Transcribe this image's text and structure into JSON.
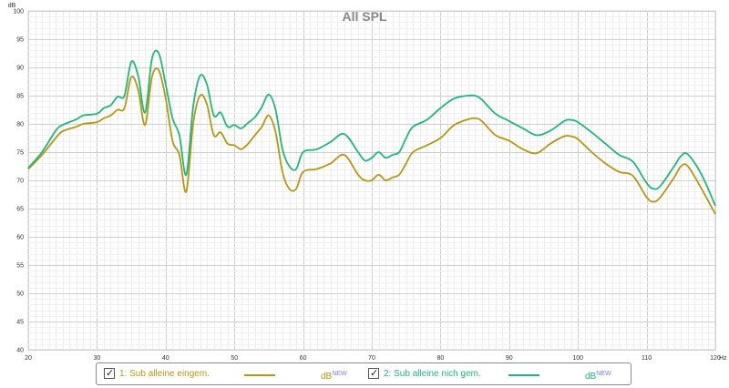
{
  "chart_data": {
    "type": "line",
    "title": "All SPL",
    "ylabel": "dB",
    "xunit": "Hz",
    "xlim": [
      20,
      120
    ],
    "ylim": [
      40,
      100
    ],
    "grid": true,
    "legend_position": "bottom",
    "xticks": [
      "20",
      "30",
      "40",
      "50",
      "60",
      "70",
      "80",
      "90",
      "100",
      "110",
      "120"
    ],
    "yticks": [
      "40",
      "45",
      "50",
      "55",
      "60",
      "65",
      "70",
      "75",
      "80",
      "85",
      "90",
      "95",
      "100"
    ],
    "series": [
      {
        "name": "1: Sub alleine eingem.",
        "unit": "dB",
        "unit_sup": "NEW",
        "color": "#b8960f",
        "checked": true,
        "x": [
          20,
          22,
          24,
          25,
          27,
          28,
          30,
          31,
          32,
          33,
          34,
          35,
          36,
          37,
          38,
          39,
          40,
          41,
          42,
          43,
          44,
          45,
          46,
          47,
          48,
          49,
          50,
          51,
          52,
          53,
          54,
          55,
          56,
          57,
          58,
          59,
          60,
          62,
          64,
          66,
          68,
          69,
          70,
          71,
          72,
          73,
          74,
          75,
          76,
          78,
          80,
          82,
          84,
          85,
          86,
          88,
          90,
          92,
          94,
          96,
          98,
          99,
          100,
          102,
          104,
          106,
          108,
          110,
          111,
          112,
          114,
          115,
          116,
          118,
          120
        ],
        "y": [
          72.0,
          74.5,
          77.5,
          78.7,
          79.5,
          80.0,
          80.3,
          81.0,
          81.5,
          82.5,
          82.8,
          88.3,
          86.0,
          79.8,
          88.3,
          89.5,
          84.5,
          77.0,
          74.5,
          68.0,
          80.0,
          85.0,
          83.5,
          78.0,
          78.5,
          76.5,
          76.2,
          75.5,
          76.5,
          78.0,
          79.5,
          81.5,
          78.5,
          71.5,
          68.5,
          68.5,
          71.5,
          72.0,
          73.0,
          74.5,
          71.0,
          70.0,
          70.0,
          71.0,
          70.0,
          70.5,
          71.0,
          73.0,
          75.0,
          76.2,
          77.5,
          79.8,
          80.8,
          81.0,
          80.5,
          78.0,
          77.0,
          75.5,
          74.8,
          76.5,
          77.8,
          77.8,
          77.3,
          75.0,
          73.0,
          71.5,
          70.8,
          67.0,
          66.2,
          67.0,
          70.5,
          72.5,
          72.5,
          68.5,
          64.0
        ]
      },
      {
        "name": "2: Sub alleine nich gem.",
        "unit": "dB",
        "unit_sup": "NEW",
        "color": "#1db87a",
        "checked": true,
        "x": [
          20,
          22,
          24,
          25,
          27,
          28,
          30,
          31,
          32,
          33,
          34,
          35,
          36,
          37,
          38,
          39,
          40,
          41,
          42,
          43,
          44,
          45,
          46,
          47,
          48,
          49,
          50,
          51,
          52,
          53,
          54,
          55,
          56,
          57,
          58,
          59,
          60,
          62,
          64,
          66,
          68,
          69,
          70,
          71,
          72,
          73,
          74,
          75,
          76,
          78,
          80,
          82,
          84,
          85,
          86,
          88,
          90,
          92,
          94,
          96,
          98,
          99,
          100,
          102,
          104,
          106,
          108,
          110,
          111,
          112,
          114,
          115,
          116,
          118,
          120
        ],
        "y": [
          72.2,
          75.0,
          78.8,
          79.8,
          80.8,
          81.5,
          81.8,
          82.8,
          83.3,
          84.8,
          85.0,
          91.0,
          88.5,
          82.0,
          91.5,
          92.5,
          87.0,
          81.0,
          78.0,
          71.0,
          83.0,
          88.5,
          87.0,
          81.5,
          82.0,
          79.5,
          79.8,
          79.2,
          80.2,
          81.2,
          83.0,
          85.2,
          82.5,
          75.5,
          72.5,
          72.0,
          75.0,
          75.5,
          76.8,
          78.2,
          75.0,
          73.5,
          74.0,
          75.0,
          74.0,
          74.5,
          75.0,
          77.5,
          79.5,
          80.7,
          82.8,
          84.5,
          85.0,
          85.0,
          84.3,
          81.8,
          80.5,
          79.2,
          78.0,
          78.8,
          80.5,
          80.7,
          80.3,
          78.5,
          76.5,
          74.5,
          73.3,
          69.5,
          68.5,
          69.0,
          72.5,
          74.3,
          74.6,
          71.0,
          65.5
        ]
      }
    ]
  }
}
